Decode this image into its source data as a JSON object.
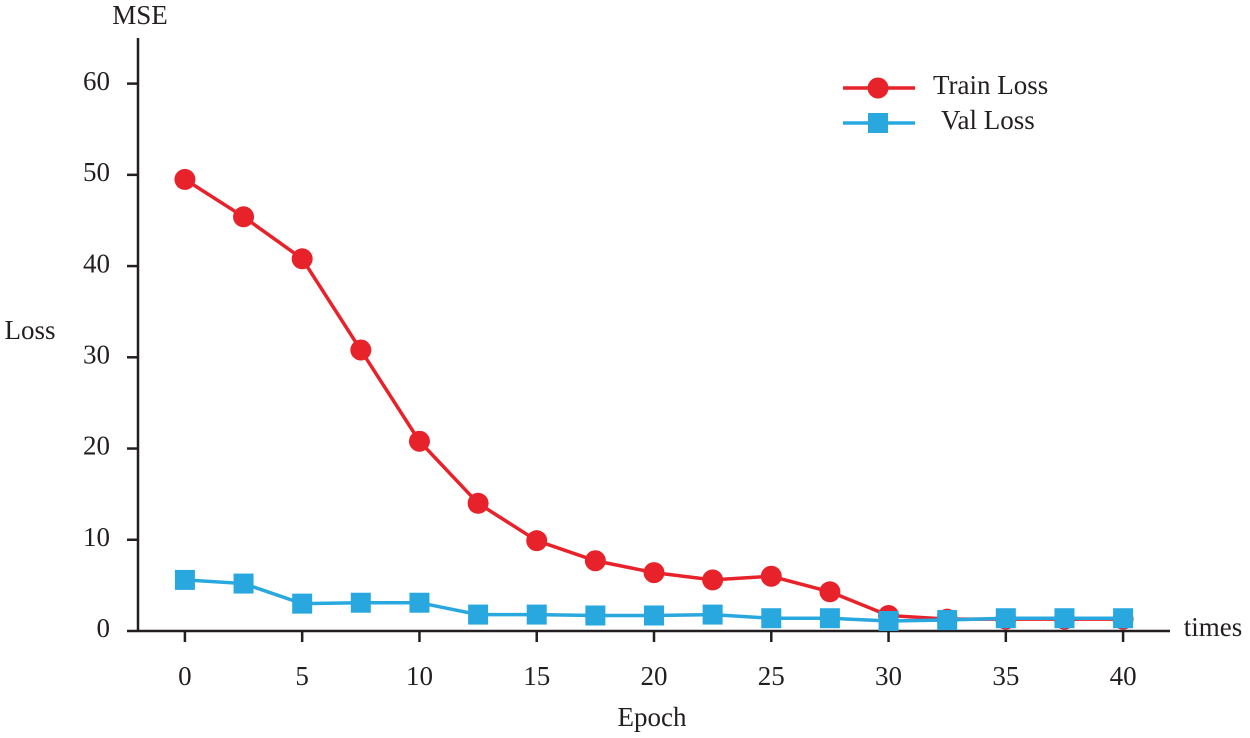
{
  "chart_data": {
    "type": "line",
    "y_unit_label": "MSE",
    "y_axis_label": "Loss",
    "x_unit_label": "times",
    "x_axis_label": "Epoch",
    "x": [
      0,
      2.5,
      5,
      7.5,
      10,
      12.5,
      15,
      17.5,
      20,
      22.5,
      25,
      27.5,
      30,
      32.5,
      35,
      37.5,
      40
    ],
    "series": [
      {
        "name": "Train Loss",
        "color": "#e8222a",
        "marker": "circle",
        "values": [
          49.5,
          45.4,
          40.8,
          30.8,
          20.8,
          14.0,
          9.9,
          7.7,
          6.4,
          5.6,
          6.0,
          4.3,
          1.7,
          1.3,
          1.3,
          1.3,
          1.3
        ]
      },
      {
        "name": "Val Loss",
        "color": "#29a8df",
        "marker": "square",
        "values": [
          5.6,
          5.2,
          3.0,
          3.1,
          3.1,
          1.8,
          1.8,
          1.7,
          1.7,
          1.8,
          1.4,
          1.4,
          1.1,
          1.2,
          1.4,
          1.4,
          1.4
        ]
      }
    ],
    "xlim": [
      -2,
      42
    ],
    "xticks": [
      0,
      5,
      10,
      15,
      20,
      25,
      30,
      35,
      40
    ],
    "ylim": [
      0,
      65
    ],
    "yticks": [
      0,
      10,
      20,
      30,
      40,
      50,
      60
    ],
    "grid": false,
    "legend": "upper right"
  }
}
